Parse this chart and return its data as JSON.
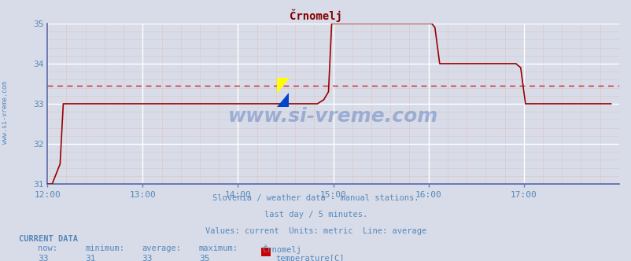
{
  "title": "Črnomelj",
  "title_color": "#880000",
  "bg_color": "#d8dce8",
  "plot_bg_color": "#d8dce8",
  "grid_color_major": "#ffffff",
  "grid_color_minor": "#ddc8c8",
  "line_color": "#990000",
  "avg_line_color": "#cc2222",
  "avg_value": 33.45,
  "xlim_start": 0,
  "xlim_end": 360,
  "ylim": [
    31,
    35
  ],
  "yticks": [
    31,
    32,
    33,
    34,
    35
  ],
  "xtick_positions": [
    0,
    60,
    120,
    180,
    240,
    300
  ],
  "xtick_labels": [
    "12:00",
    "13:00",
    "14:00",
    "15:00",
    "16:00",
    "17:00"
  ],
  "subtitle_lines": [
    "Slovenia / weather data - manual stations.",
    "last day / 5 minutes.",
    "Values: current  Units: metric  Line: average"
  ],
  "subtitle_color": "#5588bb",
  "watermark": "www.si-vreme.com",
  "watermark_color": "#1144aa",
  "watermark_alpha": 0.3,
  "ylabel_text": "www.si-vreme.com",
  "ylabel_color": "#5588bb",
  "current_data_label": "CURRENT DATA",
  "stats": {
    "now": 33,
    "minimum": 31,
    "average": 33,
    "maximum": 35
  },
  "legend_label": "temperature[C]",
  "legend_color": "#cc0000",
  "time_series": [
    [
      0,
      31.0
    ],
    [
      3,
      31.0
    ],
    [
      5,
      31.2
    ],
    [
      8,
      31.5
    ],
    [
      10,
      33.0
    ],
    [
      170,
      33.0
    ],
    [
      174,
      33.1
    ],
    [
      177,
      33.3
    ],
    [
      179,
      35.0
    ],
    [
      242,
      35.0
    ],
    [
      244,
      34.9
    ],
    [
      247,
      34.0
    ],
    [
      295,
      34.0
    ],
    [
      298,
      33.9
    ],
    [
      301,
      33.0
    ],
    [
      355,
      33.0
    ]
  ],
  "spine_color": "#5566aa",
  "axis_bottom_color": "#5566aa",
  "arrow_color": "#990000"
}
